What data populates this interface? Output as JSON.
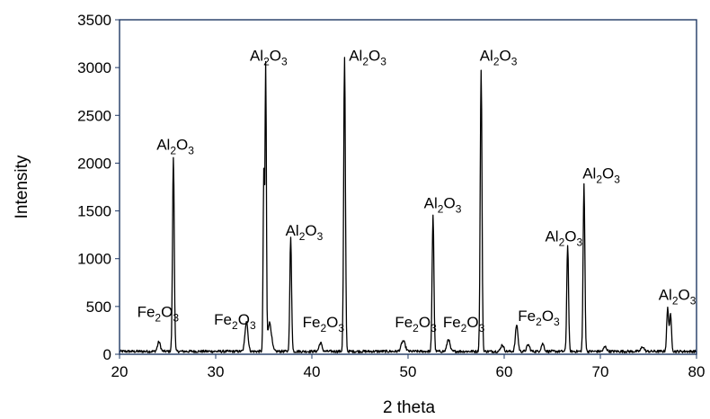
{
  "chart_data": {
    "type": "line",
    "title": "",
    "xlabel": "2 theta",
    "ylabel": "Intensity",
    "xlim": [
      20,
      80
    ],
    "ylim": [
      0,
      3500
    ],
    "xticks": [
      20,
      30,
      40,
      50,
      60,
      70,
      80
    ],
    "yticks": [
      0,
      500,
      1000,
      1500,
      2000,
      2500,
      3000,
      3500
    ],
    "grid": false,
    "legend": "none",
    "colors": {
      "line": "#000000",
      "frame": "#1f3864"
    },
    "baseline": 30,
    "peaks": [
      {
        "x": 24.1,
        "y": 100,
        "w": 0.15
      },
      {
        "x": 25.6,
        "y": 2030,
        "w": 0.09
      },
      {
        "x": 33.2,
        "y": 320,
        "w": 0.15
      },
      {
        "x": 35.0,
        "y": 1850,
        "w": 0.07
      },
      {
        "x": 35.2,
        "y": 2960,
        "w": 0.07
      },
      {
        "x": 35.6,
        "y": 300,
        "w": 0.2
      },
      {
        "x": 37.8,
        "y": 1190,
        "w": 0.09
      },
      {
        "x": 40.9,
        "y": 90,
        "w": 0.15
      },
      {
        "x": 43.4,
        "y": 3070,
        "w": 0.09
      },
      {
        "x": 49.5,
        "y": 110,
        "w": 0.2
      },
      {
        "x": 52.6,
        "y": 1430,
        "w": 0.09
      },
      {
        "x": 54.2,
        "y": 130,
        "w": 0.15
      },
      {
        "x": 57.6,
        "y": 2950,
        "w": 0.09
      },
      {
        "x": 59.8,
        "y": 70,
        "w": 0.15
      },
      {
        "x": 61.3,
        "y": 280,
        "w": 0.13
      },
      {
        "x": 62.5,
        "y": 70,
        "w": 0.15
      },
      {
        "x": 64.0,
        "y": 80,
        "w": 0.15
      },
      {
        "x": 66.6,
        "y": 1120,
        "w": 0.09
      },
      {
        "x": 68.3,
        "y": 1750,
        "w": 0.09
      },
      {
        "x": 70.5,
        "y": 50,
        "w": 0.15
      },
      {
        "x": 74.4,
        "y": 50,
        "w": 0.15
      },
      {
        "x": 77.0,
        "y": 450,
        "w": 0.1
      },
      {
        "x": 77.3,
        "y": 380,
        "w": 0.1
      }
    ],
    "annotations": [
      {
        "base": "Fe",
        "sub1": "2",
        "mid": "O",
        "sub2": "3",
        "x": 24.0,
        "y": 390
      },
      {
        "base": "Al",
        "sub1": "2",
        "mid": "O",
        "sub2": "3",
        "x": 25.8,
        "y": 2140
      },
      {
        "base": "Fe",
        "sub1": "2",
        "mid": "O",
        "sub2": "3",
        "x": 32.0,
        "y": 310
      },
      {
        "base": "Al",
        "sub1": "2",
        "mid": "O",
        "sub2": "3",
        "x": 35.5,
        "y": 3070
      },
      {
        "base": "Al",
        "sub1": "2",
        "mid": "O",
        "sub2": "3",
        "x": 39.2,
        "y": 1240
      },
      {
        "base": "Fe",
        "sub1": "2",
        "mid": "O",
        "sub2": "3",
        "x": 41.2,
        "y": 280
      },
      {
        "base": "Al",
        "sub1": "2",
        "mid": "O",
        "sub2": "3",
        "x": 45.8,
        "y": 3070
      },
      {
        "base": "Fe",
        "sub1": "2",
        "mid": "O",
        "sub2": "3",
        "x": 50.8,
        "y": 280
      },
      {
        "base": "Al",
        "sub1": "2",
        "mid": "O",
        "sub2": "3",
        "x": 53.6,
        "y": 1530
      },
      {
        "base": "Fe",
        "sub1": "2",
        "mid": "O",
        "sub2": "3",
        "x": 55.8,
        "y": 280
      },
      {
        "base": "Al",
        "sub1": "2",
        "mid": "O",
        "sub2": "3",
        "x": 59.4,
        "y": 3070
      },
      {
        "base": "Fe",
        "sub1": "2",
        "mid": "O",
        "sub2": "3",
        "x": 63.6,
        "y": 350
      },
      {
        "base": "Al",
        "sub1": "2",
        "mid": "O",
        "sub2": "3",
        "x": 66.2,
        "y": 1180
      },
      {
        "base": "Al",
        "sub1": "2",
        "mid": "O",
        "sub2": "3",
        "x": 70.1,
        "y": 1840
      },
      {
        "base": "Al",
        "sub1": "2",
        "mid": "O",
        "sub2": "3",
        "x": 78.0,
        "y": 570
      }
    ]
  }
}
